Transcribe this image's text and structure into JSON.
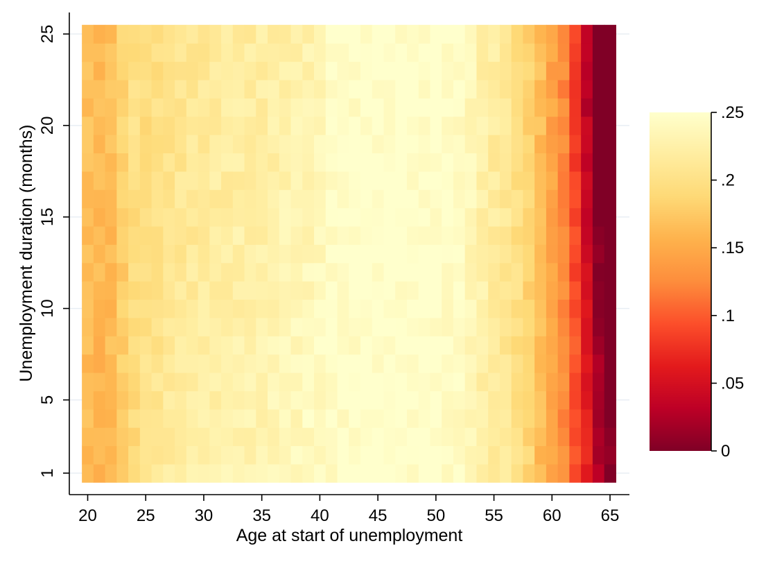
{
  "chart_data": {
    "type": "heatmap",
    "xlabel": "Age at start of unemployment",
    "ylabel": "Unemployment duration (months)",
    "x_range": [
      20,
      65
    ],
    "y_range": [
      1,
      25
    ],
    "x_ticks": [
      20,
      25,
      30,
      35,
      40,
      45,
      50,
      55,
      60,
      65
    ],
    "y_ticks": [
      1,
      5,
      10,
      15,
      20,
      25
    ],
    "colorbar": {
      "min": 0,
      "max": 0.25,
      "ticks": [
        {
          "value": 0,
          "label": "0"
        },
        {
          "value": 0.05,
          "label": ".05"
        },
        {
          "value": 0.1,
          "label": ".1"
        },
        {
          "value": 0.15,
          "label": ".15"
        },
        {
          "value": 0.2,
          "label": ".2"
        },
        {
          "value": 0.25,
          "label": ".25"
        }
      ],
      "colors": [
        "#800026",
        "#bd0026",
        "#e31a1c",
        "#fc4e2a",
        "#fd8d3c",
        "#feb24c",
        "#fed976",
        "#ffeda0",
        "#ffffcc"
      ]
    },
    "age_profile": [
      {
        "age": 20,
        "value": 0.165
      },
      {
        "age": 21,
        "value": 0.16
      },
      {
        "age": 22,
        "value": 0.165
      },
      {
        "age": 23,
        "value": 0.18
      },
      {
        "age": 24,
        "value": 0.195
      },
      {
        "age": 25,
        "value": 0.205
      },
      {
        "age": 27,
        "value": 0.215
      },
      {
        "age": 30,
        "value": 0.225
      },
      {
        "age": 33,
        "value": 0.23
      },
      {
        "age": 36,
        "value": 0.235
      },
      {
        "age": 38,
        "value": 0.24
      },
      {
        "age": 40,
        "value": 0.245
      },
      {
        "age": 45,
        "value": 0.25
      },
      {
        "age": 50,
        "value": 0.25
      },
      {
        "age": 52,
        "value": 0.245
      },
      {
        "age": 54,
        "value": 0.225
      },
      {
        "age": 56,
        "value": 0.21
      },
      {
        "age": 58,
        "value": 0.185
      },
      {
        "age": 59,
        "value": 0.165
      },
      {
        "age": 60,
        "value": 0.145
      },
      {
        "age": 61,
        "value": 0.125
      },
      {
        "age": 62,
        "value": 0.1
      },
      {
        "age": 63,
        "value": 0.065
      },
      {
        "age": 64,
        "value": 0.03
      },
      {
        "age": 65,
        "value": 0.005
      }
    ],
    "duration_profile_note": "",
    "cell_grid": {
      "age_step": 1,
      "months": 25
    }
  }
}
